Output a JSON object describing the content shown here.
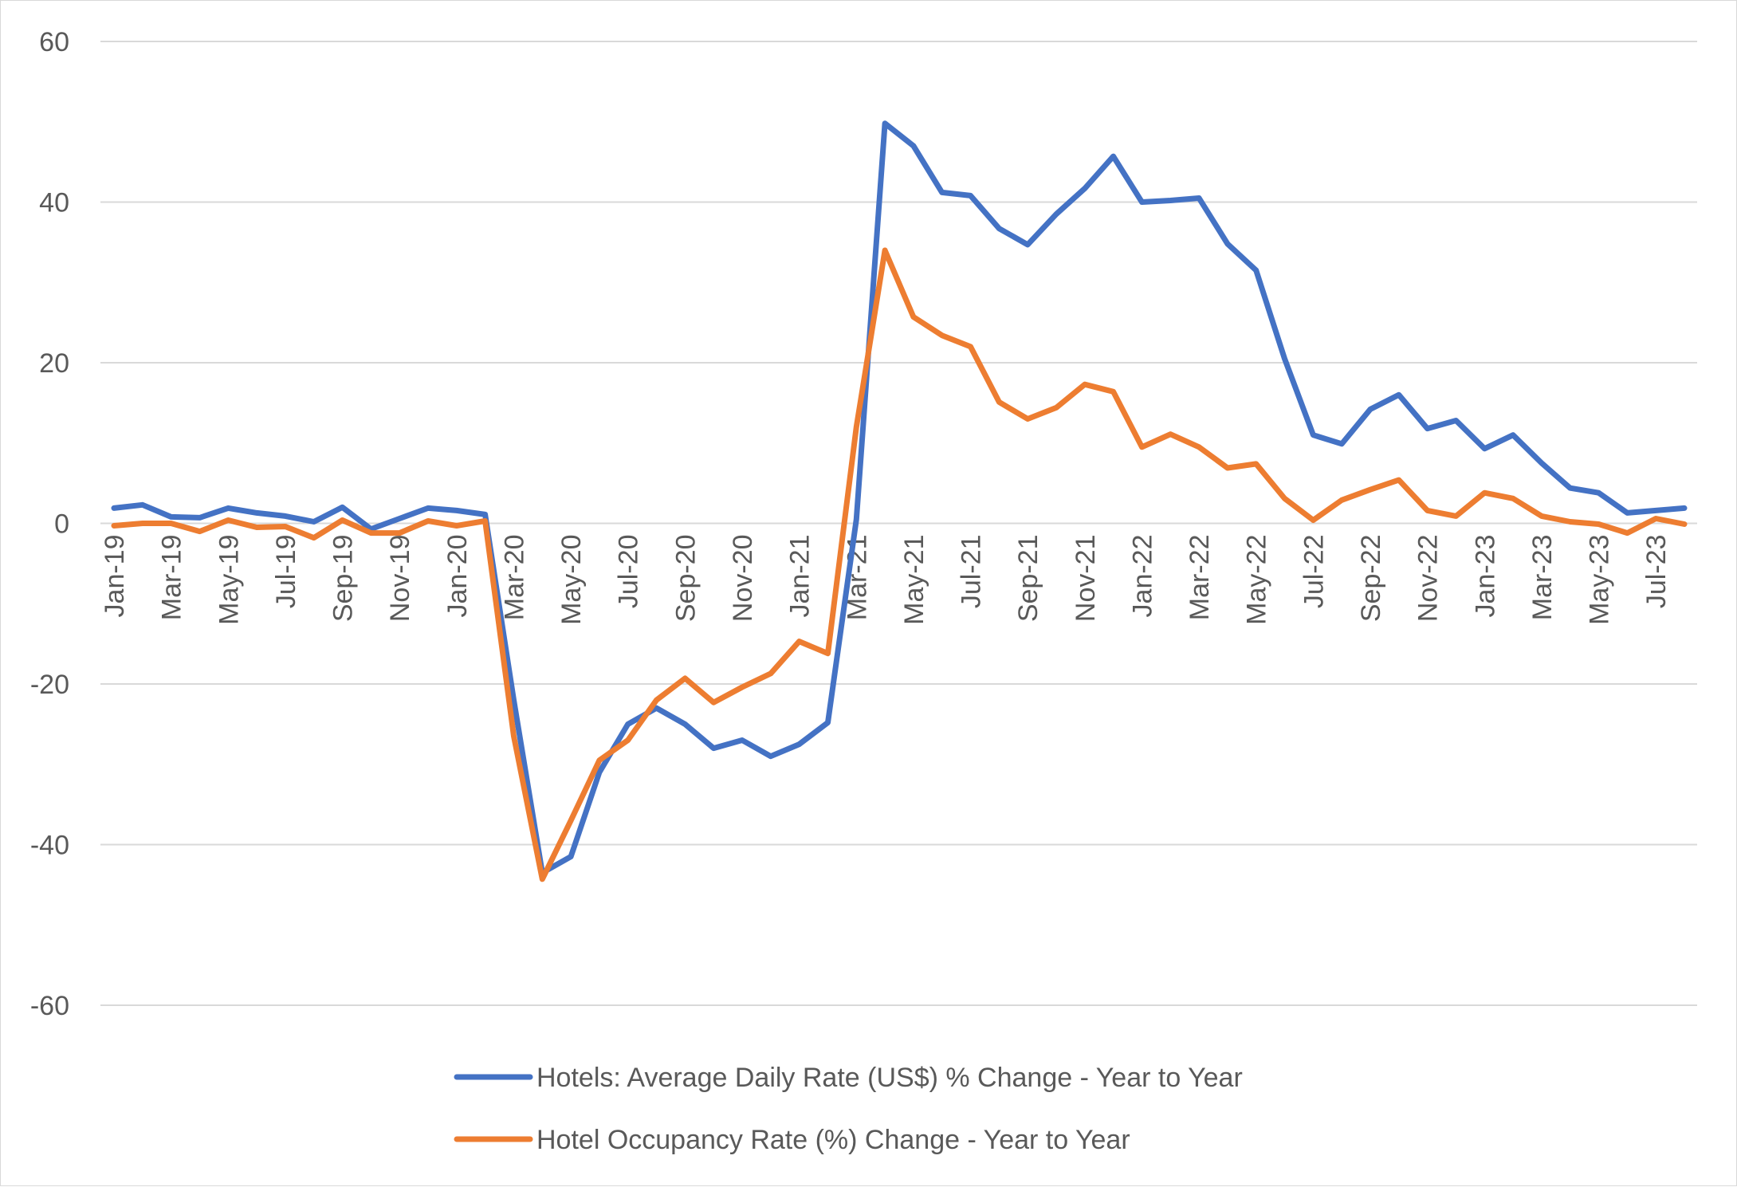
{
  "chart_data": {
    "type": "line",
    "title": "",
    "xlabel": "",
    "ylabel": "",
    "ylim": [
      -60,
      60
    ],
    "y_ticks": [
      60,
      40,
      20,
      0,
      -20,
      -40,
      -60
    ],
    "grid": true,
    "legend_position": "bottom",
    "x": [
      "Jan-19",
      "Feb-19",
      "Mar-19",
      "Apr-19",
      "May-19",
      "Jun-19",
      "Jul-19",
      "Aug-19",
      "Sep-19",
      "Oct-19",
      "Nov-19",
      "Dec-19",
      "Jan-20",
      "Feb-20",
      "Mar-20",
      "Apr-20",
      "May-20",
      "Jun-20",
      "Jul-20",
      "Aug-20",
      "Sep-20",
      "Oct-20",
      "Nov-20",
      "Dec-20",
      "Jan-21",
      "Feb-21",
      "Mar-21",
      "Apr-21",
      "May-21",
      "Jun-21",
      "Jul-21",
      "Aug-21",
      "Sep-21",
      "Oct-21",
      "Nov-21",
      "Dec-21",
      "Jan-22",
      "Feb-22",
      "Mar-22",
      "Apr-22",
      "May-22",
      "Jun-22",
      "Jul-22",
      "Aug-22",
      "Sep-22",
      "Oct-22",
      "Nov-22",
      "Dec-22",
      "Jan-23",
      "Feb-23",
      "Mar-23",
      "Apr-23",
      "May-23",
      "Jun-23",
      "Jul-23",
      "Aug-23"
    ],
    "x_tick_labels": [
      "Jan-19",
      "Mar-19",
      "May-19",
      "Jul-19",
      "Sep-19",
      "Nov-19",
      "Jan-20",
      "Mar-20",
      "May-20",
      "Jul-20",
      "Sep-20",
      "Nov-20",
      "Jan-21",
      "Mar-21",
      "May-21",
      "Jul-21",
      "Sep-21",
      "Nov-21",
      "Jan-22",
      "Mar-22",
      "May-22",
      "Jul-22",
      "Sep-22",
      "Nov-22",
      "Jan-23",
      "Mar-23",
      "May-23",
      "Jul-23"
    ],
    "series": [
      {
        "name": "Hotels: Average Daily Rate (US$) % Change - Year to Year",
        "color": "#4472c4",
        "values": [
          1.9,
          2.3,
          0.8,
          0.7,
          1.9,
          1.3,
          0.9,
          0.2,
          2.0,
          -0.7,
          0.6,
          1.9,
          1.6,
          1.1,
          -22.0,
          -43.5,
          -41.5,
          -31.0,
          -25.0,
          -23.0,
          -25.0,
          -28.0,
          -27.0,
          -29.0,
          -27.5,
          -24.8,
          0.5,
          49.8,
          47.0,
          41.2,
          40.8,
          36.7,
          34.7,
          38.5,
          41.7,
          45.7,
          40.0,
          40.2,
          40.5,
          34.8,
          31.5,
          20.5,
          11.0,
          9.9,
          14.2,
          16.0,
          11.8,
          12.8,
          9.3,
          11.0,
          7.5,
          4.4,
          3.8,
          1.3,
          1.6,
          1.9
        ]
      },
      {
        "name": "Hotel Occupancy Rate (%) Change - Year to Year",
        "color": "#ed7d31",
        "values": [
          -0.3,
          0.0,
          0.0,
          -1.0,
          0.4,
          -0.5,
          -0.4,
          -1.8,
          0.4,
          -1.2,
          -1.2,
          0.3,
          -0.3,
          0.3,
          -26.5,
          -44.3,
          -37.0,
          -29.5,
          -27.0,
          -22.0,
          -19.3,
          -22.3,
          -20.4,
          -18.7,
          -14.7,
          -16.2,
          12.0,
          34.0,
          25.7,
          23.4,
          22.0,
          15.1,
          13.0,
          14.4,
          17.3,
          16.4,
          9.5,
          11.1,
          9.5,
          6.9,
          7.4,
          3.1,
          0.4,
          2.9,
          4.2,
          5.4,
          1.6,
          0.9,
          3.8,
          3.1,
          0.9,
          0.2,
          -0.1,
          -1.2,
          0.6,
          -0.1
        ]
      }
    ]
  }
}
